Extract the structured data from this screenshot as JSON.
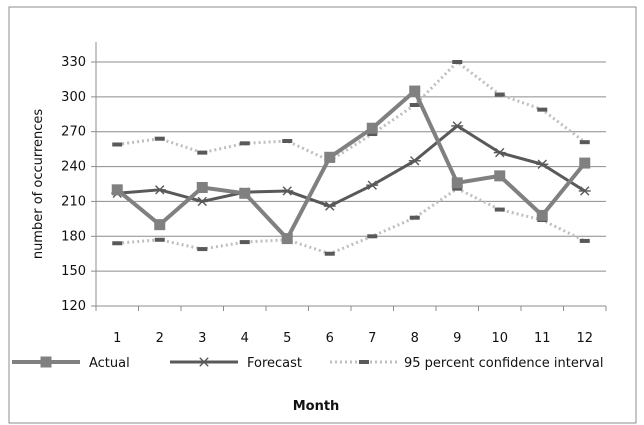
{
  "chart_data": {
    "type": "line",
    "title": "",
    "xlabel": "Month",
    "ylabel": "number of occurrences",
    "categories": [
      "1",
      "2",
      "3",
      "4",
      "5",
      "6",
      "7",
      "8",
      "9",
      "10",
      "11",
      "12"
    ],
    "yticks": [
      120,
      150,
      180,
      210,
      240,
      270,
      300,
      330
    ],
    "ylim": [
      120,
      330
    ],
    "grid": "horizontal",
    "legend_position": "bottom",
    "series": [
      {
        "name": "Actual",
        "marker": "square",
        "color": "#808080",
        "style": "solid",
        "values": [
          220,
          190,
          222,
          217,
          178,
          248,
          273,
          305,
          226,
          232,
          198,
          243
        ]
      },
      {
        "name": "Forecast",
        "marker": "asterisk",
        "color": "#595959",
        "style": "solid",
        "values": [
          217,
          220,
          210,
          218,
          219,
          206,
          224,
          245,
          275,
          252,
          242,
          219
        ]
      },
      {
        "name": "95 percent confidence interval",
        "marker": "dash",
        "color": "#bfbfbf",
        "style": "dotted",
        "values": [
          259,
          264,
          252,
          260,
          262,
          245,
          268,
          293,
          330,
          302,
          289,
          261
        ]
      },
      {
        "name": "",
        "marker": "dash",
        "color": "#bfbfbf",
        "style": "dotted",
        "values": [
          174,
          177,
          169,
          175,
          177,
          165,
          180,
          196,
          221,
          203,
          194,
          176
        ]
      }
    ]
  }
}
